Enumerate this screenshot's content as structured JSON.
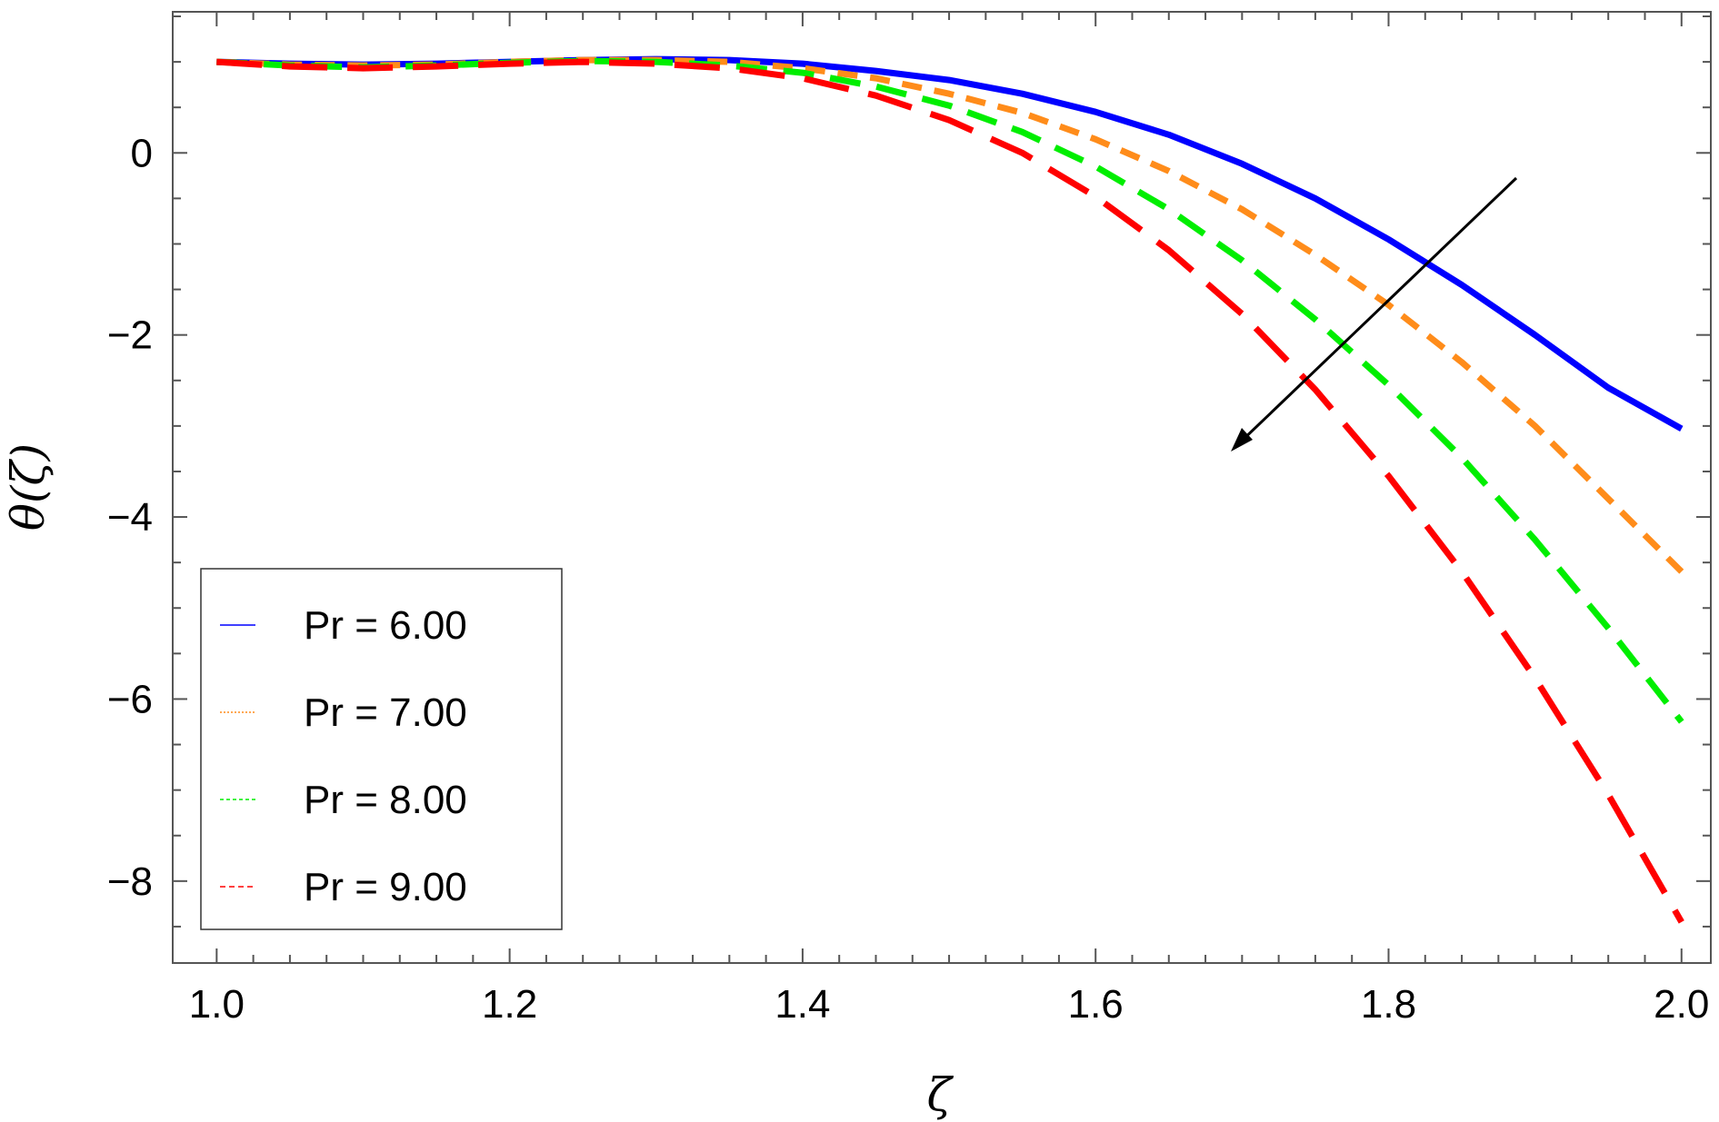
{
  "chart_data": {
    "type": "line",
    "title": "",
    "xlabel": "ζ",
    "ylabel": "θ(ζ)",
    "xlim": [
      0.97,
      2.02
    ],
    "ylim": [
      -8.9,
      1.55
    ],
    "xticks": [
      {
        "value": 1.0,
        "label": "1.0"
      },
      {
        "value": 1.2,
        "label": "1.2"
      },
      {
        "value": 1.4,
        "label": "1.4"
      },
      {
        "value": 1.6,
        "label": "1.6"
      },
      {
        "value": 1.8,
        "label": "1.8"
      },
      {
        "value": 2.0,
        "label": "2.0"
      }
    ],
    "yticks": [
      {
        "value": 0,
        "label": "0"
      },
      {
        "value": -2,
        "label": "−2"
      },
      {
        "value": -4,
        "label": "−4"
      },
      {
        "value": -6,
        "label": "−6"
      },
      {
        "value": -8,
        "label": "−8"
      }
    ],
    "grid": false,
    "legend_position": "bottom-left",
    "series": [
      {
        "name": "Pr = 6.00",
        "color": "#0000ff",
        "dash": "solid",
        "x": [
          1.0,
          1.05,
          1.1,
          1.15,
          1.2,
          1.25,
          1.3,
          1.35,
          1.4,
          1.45,
          1.5,
          1.55,
          1.6,
          1.65,
          1.7,
          1.75,
          1.8,
          1.85,
          1.9,
          1.95,
          2.0
        ],
        "y": [
          1.0,
          0.98,
          0.97,
          0.98,
          1.0,
          1.02,
          1.03,
          1.02,
          0.98,
          0.9,
          0.8,
          0.65,
          0.45,
          0.2,
          -0.12,
          -0.5,
          -0.95,
          -1.45,
          -2.0,
          -2.58,
          -3.03
        ]
      },
      {
        "name": "Pr = 7.00",
        "color": "#ff8c1a",
        "dash": "short",
        "x": [
          1.0,
          1.05,
          1.1,
          1.15,
          1.2,
          1.25,
          1.3,
          1.35,
          1.4,
          1.45,
          1.5,
          1.55,
          1.6,
          1.65,
          1.7,
          1.75,
          1.8,
          1.85,
          1.9,
          1.95,
          2.0
        ],
        "y": [
          1.0,
          0.97,
          0.96,
          0.97,
          1.0,
          1.02,
          1.02,
          1.0,
          0.93,
          0.82,
          0.65,
          0.44,
          0.15,
          -0.2,
          -0.62,
          -1.12,
          -1.67,
          -2.3,
          -3.0,
          -3.8,
          -4.6
        ]
      },
      {
        "name": "Pr = 8.00",
        "color": "#00ee00",
        "dash": "medium",
        "x": [
          1.0,
          1.05,
          1.1,
          1.15,
          1.2,
          1.25,
          1.3,
          1.35,
          1.4,
          1.45,
          1.5,
          1.55,
          1.6,
          1.65,
          1.7,
          1.75,
          1.8,
          1.85,
          1.9,
          1.95,
          2.0
        ],
        "y": [
          1.0,
          0.96,
          0.94,
          0.96,
          0.99,
          1.01,
          1.0,
          0.96,
          0.88,
          0.73,
          0.52,
          0.23,
          -0.15,
          -0.62,
          -1.18,
          -1.83,
          -2.55,
          -3.35,
          -4.25,
          -5.22,
          -6.25
        ]
      },
      {
        "name": "Pr = 9.00",
        "color": "#ff0000",
        "dash": "long",
        "x": [
          1.0,
          1.05,
          1.1,
          1.15,
          1.2,
          1.25,
          1.3,
          1.35,
          1.4,
          1.45,
          1.5,
          1.55,
          1.6,
          1.65,
          1.7,
          1.75,
          1.8,
          1.85,
          1.9,
          1.95,
          2.0
        ],
        "y": [
          1.0,
          0.95,
          0.93,
          0.95,
          0.98,
          1.0,
          0.98,
          0.93,
          0.82,
          0.63,
          0.36,
          0.0,
          -0.48,
          -1.07,
          -1.77,
          -2.6,
          -3.55,
          -4.6,
          -5.77,
          -7.05,
          -8.45
        ]
      }
    ]
  }
}
